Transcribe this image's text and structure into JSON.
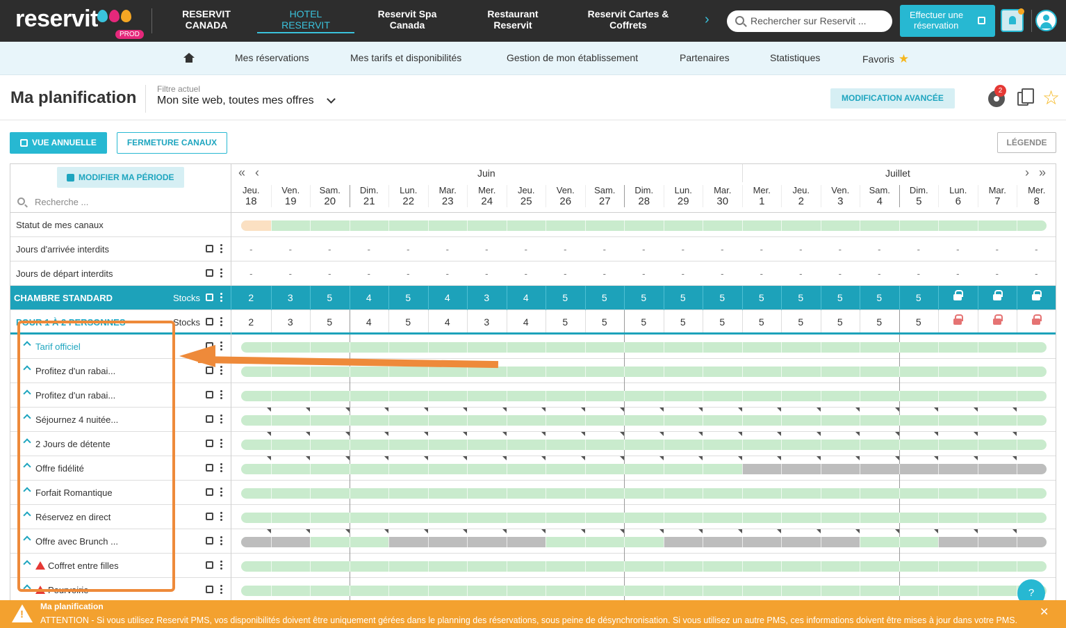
{
  "topbar": {
    "logo": "reservit",
    "env_badge": "PROD",
    "nav": [
      {
        "l1": "RESERVIT",
        "l2": "CANADA",
        "active": false
      },
      {
        "l1": "HOTEL",
        "l2": "RESERVIT",
        "active": true
      },
      {
        "l1": "Reservit Spa",
        "l2": "Canada",
        "active": false
      },
      {
        "l1": "Restaurant",
        "l2": "Reservit",
        "active": false
      },
      {
        "l1": "Reservit Cartes &",
        "l2": "Coffrets",
        "active": false
      }
    ],
    "search_placeholder": "Rechercher sur Reservit ...",
    "book_l1": "Effectuer une",
    "book_l2": "réservation"
  },
  "subnav": {
    "items": [
      "Mes réservations",
      "Mes tarifs et disponibilités",
      "Gestion de mon établissement",
      "Partenaires",
      "Statistiques",
      "Favoris"
    ]
  },
  "header": {
    "title": "Ma planification",
    "filter_label": "Filtre actuel",
    "filter_value": "Mon site web, toutes mes offres",
    "advanced_button": "MODIFICATION AVANCÉE",
    "settings_badge": "2"
  },
  "toolbar": {
    "annual_view": "VUE ANNUELLE",
    "close_channels": "FERMETURE CANAUX",
    "legend": "LÉGENDE"
  },
  "grid": {
    "modify_period": "MODIFIER MA PÉRIODE",
    "search_placeholder": "Recherche ...",
    "months": [
      "Juin",
      "Juillet"
    ],
    "days": [
      {
        "d": "Jeu.",
        "n": "18"
      },
      {
        "d": "Ven.",
        "n": "19"
      },
      {
        "d": "Sam.",
        "n": "20"
      },
      {
        "d": "Dim.",
        "n": "21"
      },
      {
        "d": "Lun.",
        "n": "22"
      },
      {
        "d": "Mar.",
        "n": "23"
      },
      {
        "d": "Mer.",
        "n": "24"
      },
      {
        "d": "Jeu.",
        "n": "25"
      },
      {
        "d": "Ven.",
        "n": "26"
      },
      {
        "d": "Sam.",
        "n": "27"
      },
      {
        "d": "Dim.",
        "n": "28"
      },
      {
        "d": "Lun.",
        "n": "29"
      },
      {
        "d": "Mar.",
        "n": "30"
      },
      {
        "d": "Mer.",
        "n": "1"
      },
      {
        "d": "Jeu.",
        "n": "2"
      },
      {
        "d": "Ven.",
        "n": "3"
      },
      {
        "d": "Sam.",
        "n": "4"
      },
      {
        "d": "Dim.",
        "n": "5"
      },
      {
        "d": "Lun.",
        "n": "6"
      },
      {
        "d": "Mar.",
        "n": "7"
      },
      {
        "d": "Mer.",
        "n": "8"
      }
    ],
    "channel_status_label": "Statut de mes canaux",
    "no_arrival_label": "Jours d'arrivée interdits",
    "no_departure_label": "Jours de départ interdits",
    "empty_cell": "-",
    "room": {
      "name": "CHAMBRE STANDARD",
      "stocks_label": "Stocks",
      "stocks": [
        "2",
        "3",
        "5",
        "4",
        "5",
        "4",
        "3",
        "4",
        "5",
        "5",
        "5",
        "5",
        "5",
        "5",
        "5",
        "5",
        "5",
        "5"
      ],
      "locked_days": 3
    },
    "occupancy": {
      "name": "POUR 1 À 2 PERSONNES",
      "stocks_label": "Stocks",
      "stocks": [
        "2",
        "3",
        "5",
        "4",
        "5",
        "4",
        "3",
        "4",
        "5",
        "5",
        "5",
        "5",
        "5",
        "5",
        "5",
        "5",
        "5",
        "5"
      ],
      "locked_days": 3
    },
    "rates": [
      {
        "name": "Tarif officiel",
        "active": true,
        "warning": false,
        "closed": [],
        "corners": false
      },
      {
        "name": "Profitez d'un rabai...",
        "active": false,
        "warning": false,
        "closed": [],
        "corners": false
      },
      {
        "name": "Profitez d'un rabai...",
        "active": false,
        "warning": false,
        "closed": [],
        "corners": false
      },
      {
        "name": "Séjournez 4 nuitée...",
        "active": false,
        "warning": false,
        "closed": [],
        "corners": true
      },
      {
        "name": "2 Jours de détente",
        "active": false,
        "warning": false,
        "closed": [],
        "corners": true
      },
      {
        "name": "Offre fidélité",
        "active": false,
        "warning": false,
        "closed": [
          13,
          14,
          15,
          16,
          17,
          18,
          19,
          20
        ],
        "corners": true
      },
      {
        "name": "Forfait Romantique",
        "active": false,
        "warning": false,
        "closed": [],
        "corners": false
      },
      {
        "name": "Réservez en direct",
        "active": false,
        "warning": false,
        "closed": [],
        "corners": false
      },
      {
        "name": "Offre avec Brunch ...",
        "active": false,
        "warning": false,
        "closed": [
          0,
          1,
          4,
          5,
          6,
          7,
          11,
          12,
          13,
          14,
          15,
          18,
          19,
          20
        ],
        "corners": true
      },
      {
        "name": "Coffret entre filles",
        "active": false,
        "warning": true,
        "closed": [],
        "corners": false
      },
      {
        "name": "Pourvoirie",
        "active": false,
        "warning": true,
        "closed": [],
        "corners": false
      }
    ]
  },
  "alert": {
    "title": "Ma planification",
    "message": "ATTENTION - Si vous utilisez Reservit PMS, vos disponibilités doivent être uniquement gérées dans le planning des réservations, sous peine de désynchronisation. Si vous utilisez un autre PMS, ces informations doivent être mises à jour dans votre PMS."
  },
  "help_label": "?",
  "colors": {
    "accent": "#27b8d2",
    "open": "#c9ebcd",
    "closed": "#bdbdbd",
    "annotation": "#ee8a3a",
    "alert": "#f3a12f"
  }
}
